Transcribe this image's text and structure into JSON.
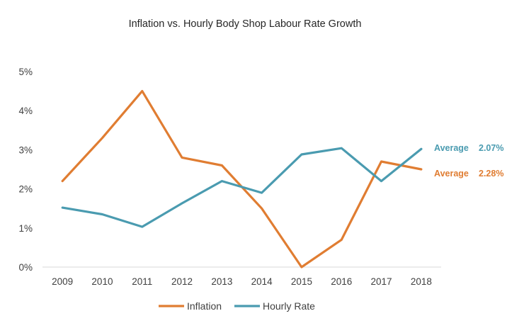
{
  "chart_data": {
    "type": "line",
    "title": "Inflation vs. Hourly Body Shop Labour Rate Growth",
    "xlabel": "",
    "ylabel": "",
    "categories": [
      "2009",
      "2010",
      "2011",
      "2012",
      "2013",
      "2014",
      "2015",
      "2016",
      "2017",
      "2018"
    ],
    "y_ticks": [
      "0%",
      "1%",
      "2%",
      "3%",
      "4%",
      "5%"
    ],
    "ylim": [
      0,
      5
    ],
    "grid": false,
    "legend_position": "bottom",
    "series": [
      {
        "name": "Inflation",
        "color": "#E07D32",
        "values": [
          2.2,
          3.3,
          4.5,
          2.8,
          2.6,
          1.5,
          0.0,
          0.7,
          2.7,
          2.5
        ],
        "average_label": "Average",
        "average_value": "2.28%"
      },
      {
        "name": "Hourly Rate",
        "color": "#4A9BB0",
        "values": [
          1.52,
          1.35,
          1.03,
          1.63,
          2.2,
          1.9,
          2.88,
          3.04,
          2.2,
          3.02
        ],
        "average_label": "Average",
        "average_value": "2.07%"
      }
    ]
  }
}
